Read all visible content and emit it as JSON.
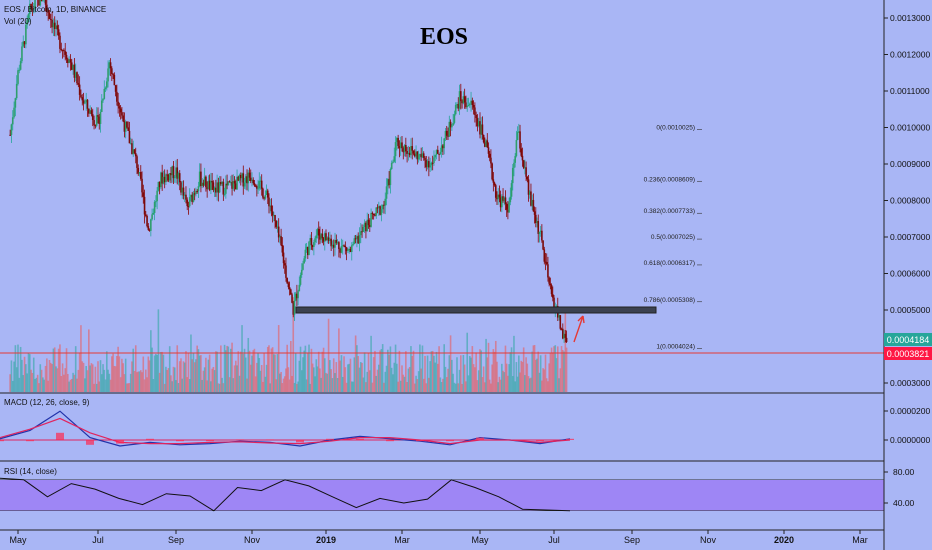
{
  "header": {
    "symbol_line": "EOS / Bitcoin, 1D, BINANCE",
    "volume_line": "Vol (20)"
  },
  "chart_data": [
    {
      "type": "candlestick",
      "title": "EOS",
      "x_ticks": [
        "May",
        "Jul",
        "Sep",
        "Nov",
        "2019",
        "Mar",
        "May",
        "Jul",
        "Sep",
        "Nov",
        "2020",
        "Mar"
      ],
      "y_ticks": [
        "0.0013000",
        "0.0012000",
        "0.0011000",
        "0.0010000",
        "0.0009000",
        "0.0008000",
        "0.0007000",
        "0.0006000",
        "0.0005000",
        "0.0003000"
      ],
      "ylim": [
        0.00027,
        0.00135
      ],
      "current_price": "0.0004184",
      "horizontal_line_label": "0.0003821",
      "horizontal_line_value": 0.0003821,
      "support_zone": 0.0005,
      "fibonacci": [
        {
          "label": "0(0.0010025)",
          "value": 0.0010025
        },
        {
          "label": "0.236(0.0008609)",
          "value": 0.0008609
        },
        {
          "label": "0.382(0.0007733)",
          "value": 0.0007733
        },
        {
          "label": "0.5(0.0007025)",
          "value": 0.0007025
        },
        {
          "label": "0.618(0.0006317)",
          "value": 0.0006317
        },
        {
          "label": "0.786(0.0005308)",
          "value": 0.0005308
        },
        {
          "label": "1(0.0004024)",
          "value": 0.0004024
        }
      ],
      "price_path": [
        [
          "Apr 25",
          0.00098
        ],
        [
          "May 1",
          0.00115
        ],
        [
          "May 10",
          0.00132
        ],
        [
          "May 20",
          0.00136
        ],
        [
          "Jun 1",
          0.00124
        ],
        [
          "Jun 10",
          0.00118
        ],
        [
          "Jun 20",
          0.00107
        ],
        [
          "Jul 1",
          0.00101
        ],
        [
          "Jul 10",
          0.00118
        ],
        [
          "Jul 20",
          0.00103
        ],
        [
          "Aug 1",
          0.0009
        ],
        [
          "Aug 10",
          0.00072
        ],
        [
          "Aug 20",
          0.00086
        ],
        [
          "Sep 1",
          0.00088
        ],
        [
          "Sep 10",
          0.00078
        ],
        [
          "Sep 20",
          0.00086
        ],
        [
          "Oct 1",
          0.00083
        ],
        [
          "Oct 15",
          0.00084
        ],
        [
          "Nov 1",
          0.00087
        ],
        [
          "Nov 15",
          0.0008
        ],
        [
          "Nov 25",
          0.00067
        ],
        [
          "Dec 5",
          0.0005
        ],
        [
          "Dec 15",
          0.00066
        ],
        [
          "Dec 25",
          0.00071
        ],
        [
          "Jan 5",
          0.00069
        ],
        [
          "Jan 20",
          0.00066
        ],
        [
          "Feb 1",
          0.00073
        ],
        [
          "Feb 15",
          0.00079
        ],
        [
          "Feb 25",
          0.00096
        ],
        [
          "Mar 10",
          0.00093
        ],
        [
          "Mar 25",
          0.0009
        ],
        [
          "Apr 5",
          0.00098
        ],
        [
          "Apr 15",
          0.00108
        ],
        [
          "Apr 25",
          0.00106
        ],
        [
          "May 5",
          0.00096
        ],
        [
          "May 15",
          0.00081
        ],
        [
          "May 25",
          0.00078
        ],
        [
          "Jun 1",
          0.00099
        ],
        [
          "Jun 10",
          0.00082
        ],
        [
          "Jun 20",
          0.0007
        ],
        [
          "Jun 28",
          0.00055
        ],
        [
          "Jul 3",
          0.0005
        ],
        [
          "Jul 8",
          0.00043
        ],
        [
          "Jul 11",
          0.00042
        ]
      ]
    },
    {
      "type": "line",
      "title": "MACD (12, 26, close, 9)",
      "y_ticks": [
        "0.0000200",
        "0.0000000"
      ],
      "series": [
        {
          "color": "#2233aa",
          "values": [
            0.1,
            0.8,
            2.4,
            0.2,
            -0.5,
            -0.2,
            -0.4,
            -0.3,
            -0.1,
            -0.2,
            -0.5,
            0.0,
            0.3,
            0.1,
            -0.1,
            -0.4,
            0.2,
            0.0,
            -0.3,
            0.1
          ]
        },
        {
          "color": "#e0245e",
          "values": [
            0.2,
            0.9,
            1.8,
            0.6,
            -0.2,
            -0.3,
            -0.3,
            -0.2,
            -0.15,
            -0.25,
            -0.3,
            -0.1,
            0.2,
            0.2,
            0.0,
            -0.3,
            0.0,
            0.0,
            -0.2,
            0.0
          ]
        }
      ]
    },
    {
      "type": "line",
      "title": "RSI (14, close)",
      "y_ticks": [
        "80.00",
        "40.00"
      ],
      "band": [
        30,
        70
      ],
      "values": [
        72,
        70,
        48,
        65,
        58,
        46,
        38,
        52,
        49,
        30,
        60,
        56,
        70,
        62,
        48,
        34,
        46,
        40,
        45,
        70,
        60,
        48,
        32,
        31,
        30
      ]
    }
  ]
}
